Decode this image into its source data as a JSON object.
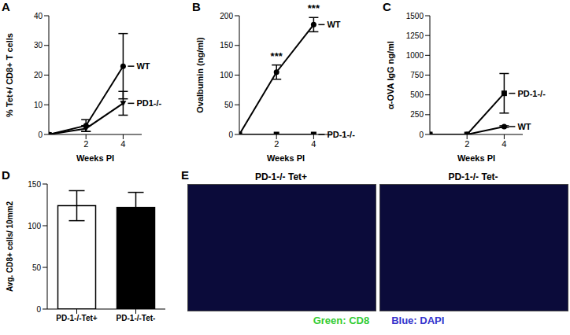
{
  "chart_data": [
    {
      "type": "line",
      "title": "A",
      "x_label": "Weeks PI",
      "y_label": "% Tet+/ CD8+ T cells",
      "x": [
        0,
        2,
        4
      ],
      "xlim": [
        0,
        5
      ],
      "xticks": [
        2,
        4
      ],
      "ylim": [
        0,
        40
      ],
      "yticks": [
        0,
        10,
        20,
        30,
        40
      ],
      "series": [
        {
          "name": "WT",
          "color": "#000000",
          "marker": "circle",
          "values": [
            0,
            3,
            23
          ],
          "errors": [
            0,
            2,
            11
          ]
        },
        {
          "name": "PD1-/-",
          "color": "#000000",
          "marker": "triangle",
          "values": [
            0,
            2,
            10.5
          ],
          "errors": [
            0,
            1,
            4
          ]
        }
      ]
    },
    {
      "type": "line",
      "title": "B",
      "x_label": "Weeks PI",
      "y_label": "Ovalbumin (ng/ml)",
      "x": [
        0,
        2,
        4
      ],
      "xlim": [
        0,
        5
      ],
      "xticks": [
        2,
        4
      ],
      "ylim": [
        0,
        200
      ],
      "yticks": [
        0,
        50,
        100,
        150,
        200
      ],
      "series": [
        {
          "name": "WT",
          "color": "#000000",
          "marker": "circle",
          "values": [
            0,
            105,
            185
          ],
          "errors": [
            0,
            12,
            12
          ]
        },
        {
          "name": "PD-1-/-",
          "color": "#000000",
          "marker": "square",
          "values": [
            0,
            0,
            0
          ],
          "errors": [
            0,
            0,
            0
          ]
        }
      ],
      "annotations": [
        {
          "x": 2,
          "text": "***"
        },
        {
          "x": 4,
          "text": "***"
        }
      ]
    },
    {
      "type": "line",
      "title": "C",
      "x_label": "Weeks PI",
      "y_label": "α-OVA IgG ng/ml",
      "x": [
        0,
        2,
        4
      ],
      "xlim": [
        0,
        5
      ],
      "xticks": [
        2,
        4
      ],
      "ylim": [
        0,
        1500
      ],
      "yticks": [
        0,
        250,
        500,
        750,
        1000,
        1250,
        1500
      ],
      "series": [
        {
          "name": "PD-1-/-",
          "color": "#000000",
          "marker": "square",
          "values": [
            0,
            0,
            520
          ],
          "errors": [
            0,
            0,
            250
          ]
        },
        {
          "name": "WT",
          "color": "#000000",
          "marker": "circle",
          "values": [
            0,
            0,
            100
          ],
          "errors": [
            0,
            0,
            10
          ]
        }
      ]
    },
    {
      "type": "bar",
      "title": "D",
      "y_label": "Avg. CD8+ cells/ 10mm2",
      "categories": [
        "PD-1-/-Tet+",
        "PD-1-/-Tet-"
      ],
      "values": [
        124,
        122
      ],
      "errors": [
        18,
        18
      ],
      "colors": [
        "#ffffff",
        "#000000"
      ],
      "ylim": [
        0,
        150
      ],
      "yticks": [
        0,
        50,
        100,
        150
      ]
    },
    {
      "type": "image",
      "title": "E",
      "panels": [
        "PD-1-/- Tet+",
        "PD-1-/- Tet-"
      ],
      "annotations": [
        {
          "text": "Green: CD8",
          "color": "#33cc33"
        },
        {
          "text": "Blue: DAPI",
          "color": "#3333cc"
        }
      ]
    }
  ]
}
